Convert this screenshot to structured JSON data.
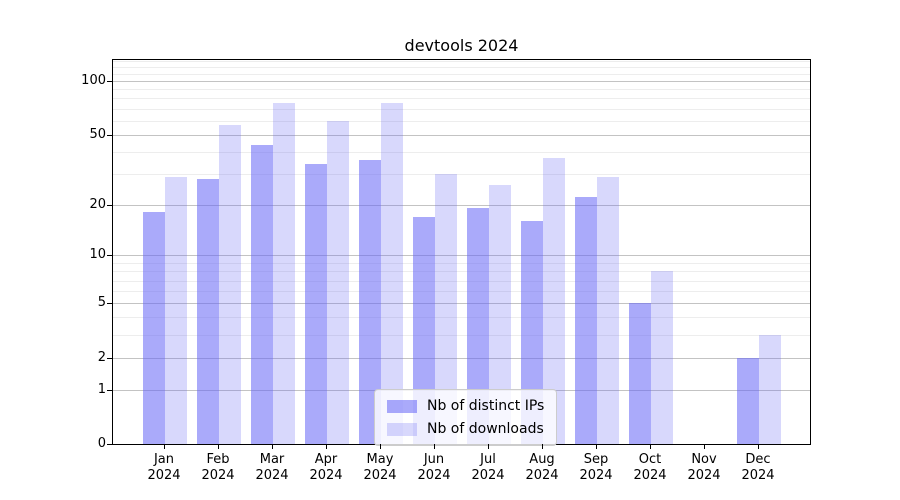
{
  "chart_data": {
    "type": "bar",
    "title": "devtools 2024",
    "categories": [
      "Jan 2024",
      "Feb 2024",
      "Mar 2024",
      "Apr 2024",
      "May 2024",
      "Jun 2024",
      "Jul 2024",
      "Aug 2024",
      "Sep 2024",
      "Oct 2024",
      "Nov 2024",
      "Dec 2024"
    ],
    "series": [
      {
        "name": "Nb of distinct IPs",
        "color": "rgba(100,100,245,0.55)",
        "values": [
          18,
          28,
          44,
          34,
          36,
          17,
          19,
          16,
          22,
          5,
          0,
          2
        ]
      },
      {
        "name": "Nb of downloads",
        "color": "rgba(100,100,245,0.25)",
        "values": [
          29,
          57,
          75,
          60,
          75,
          30,
          26,
          37,
          29,
          8,
          0,
          3
        ]
      }
    ],
    "xlabel": "",
    "ylabel": "",
    "yscale": "log1p",
    "y_major_ticks": [
      0,
      1,
      2,
      5,
      10,
      20,
      50,
      100
    ],
    "y_minor_ticks": [
      3,
      4,
      6,
      7,
      8,
      9,
      30,
      40,
      60,
      70,
      80,
      90,
      110,
      120,
      130
    ],
    "ylim": [
      0,
      131
    ],
    "grid": "horizontal",
    "legend_position": "lower center",
    "colors": {
      "bar_dark": "#a9a9fa",
      "bar_light": "#d9d9fb",
      "grid_major": "#c3c3c3",
      "grid_minor": "#ededed",
      "spine": "#000000"
    }
  }
}
